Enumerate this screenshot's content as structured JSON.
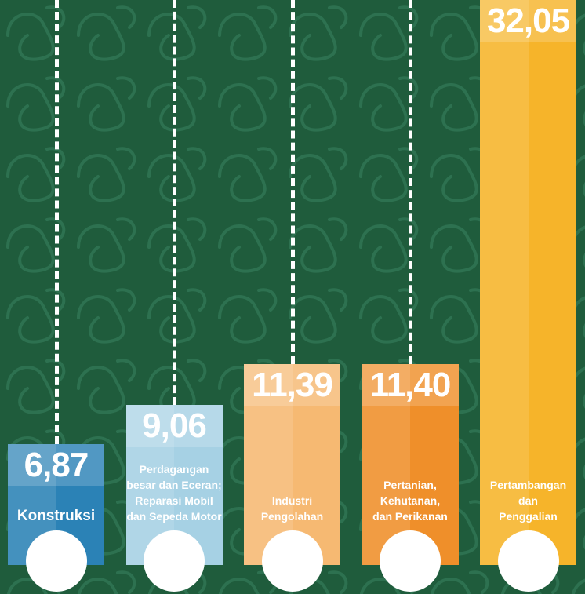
{
  "chart_data": {
    "type": "bar",
    "categories": [
      "Konstruksi",
      "Perdagangan\nbesar dan Eceran;\nReparasi Mobil\ndan Sepeda Motor",
      "Industri\nPengolahan",
      "Pertanian,\nKehutanan,\ndan Perikanan",
      "Pertambangan\ndan\nPenggalian"
    ],
    "values": [
      6.87,
      9.06,
      11.39,
      11.4,
      32.05
    ],
    "value_labels": [
      "6,87",
      "9,06",
      "11,39",
      "11,40",
      "32,05"
    ],
    "colors": [
      "#2b82b6",
      "#a6d1e4",
      "#f6b972",
      "#ef8f2a",
      "#f6b42a"
    ]
  }
}
